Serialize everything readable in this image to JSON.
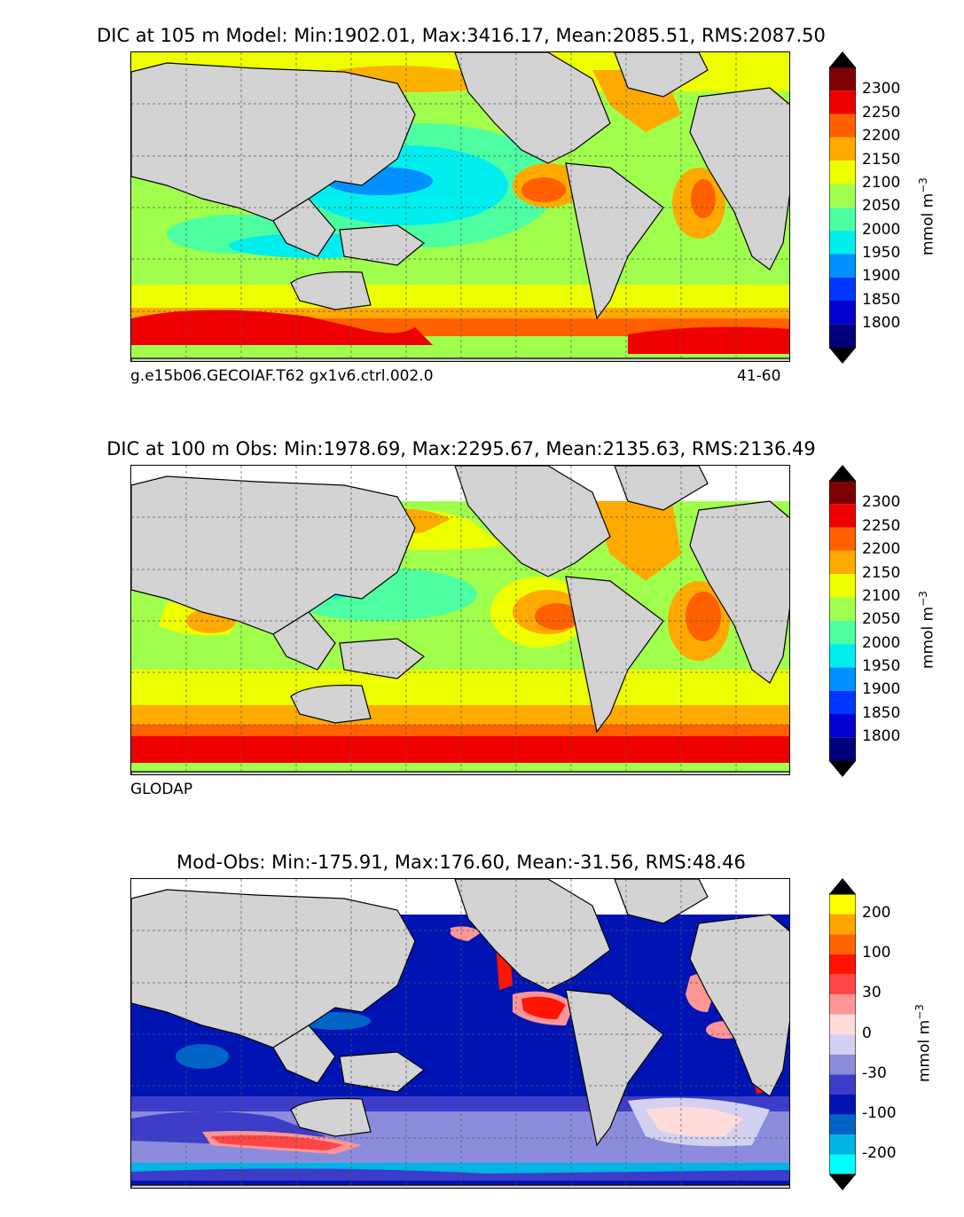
{
  "panels": [
    {
      "title": "DIC at 105 m Model: Min:1902.01, Max:3416.17, Mean:2085.51, RMS:2087.50",
      "footer_left": "g.e15b06.GECOIAF.T62 gx1v6.ctrl.002.0",
      "footer_right": "41-60",
      "colorbar_unit": "mmol m",
      "colorbar_exp": "−3",
      "colorbar_ticks": [
        "2300",
        "2250",
        "2200",
        "2150",
        "2100",
        "2050",
        "2000",
        "1950",
        "1900",
        "1850",
        "1800"
      ]
    },
    {
      "title": "DIC at 100 m Obs: Min:1978.69, Max:2295.67, Mean:2135.63, RMS:2136.49",
      "footer_left": "GLODAP",
      "footer_right": "",
      "colorbar_unit": "mmol m",
      "colorbar_exp": "−3",
      "colorbar_ticks": [
        "2300",
        "2250",
        "2200",
        "2150",
        "2100",
        "2050",
        "2000",
        "1950",
        "1900",
        "1850",
        "1800"
      ]
    },
    {
      "title": "Mod-Obs: Min:-175.91, Max:176.60, Mean:-31.56, RMS:48.46",
      "footer_left": "",
      "footer_right": "",
      "colorbar_unit": "mmol m",
      "colorbar_exp": "−3",
      "colorbar_ticks": [
        "200",
        "100",
        "30",
        "0",
        "-30",
        "-100",
        "-200"
      ]
    }
  ],
  "colors": {
    "land": "#d3d3d3",
    "dic_scale": [
      "#00007f",
      "#0000d0",
      "#0037ff",
      "#0090ff",
      "#00eeee",
      "#4dffa0",
      "#a0ff4d",
      "#eeff00",
      "#ffaa00",
      "#ff6000",
      "#ee0000",
      "#7f0000"
    ],
    "diff_scale": [
      "#00ffff",
      "#00b4e6",
      "#0064c8",
      "#0014b4",
      "#3c3cc8",
      "#8c8cdc",
      "#d2d2f0",
      "#ffdcdc",
      "#ff9696",
      "#ff4646",
      "#ff1400",
      "#ff6400",
      "#ffa500",
      "#ffff00"
    ]
  }
}
